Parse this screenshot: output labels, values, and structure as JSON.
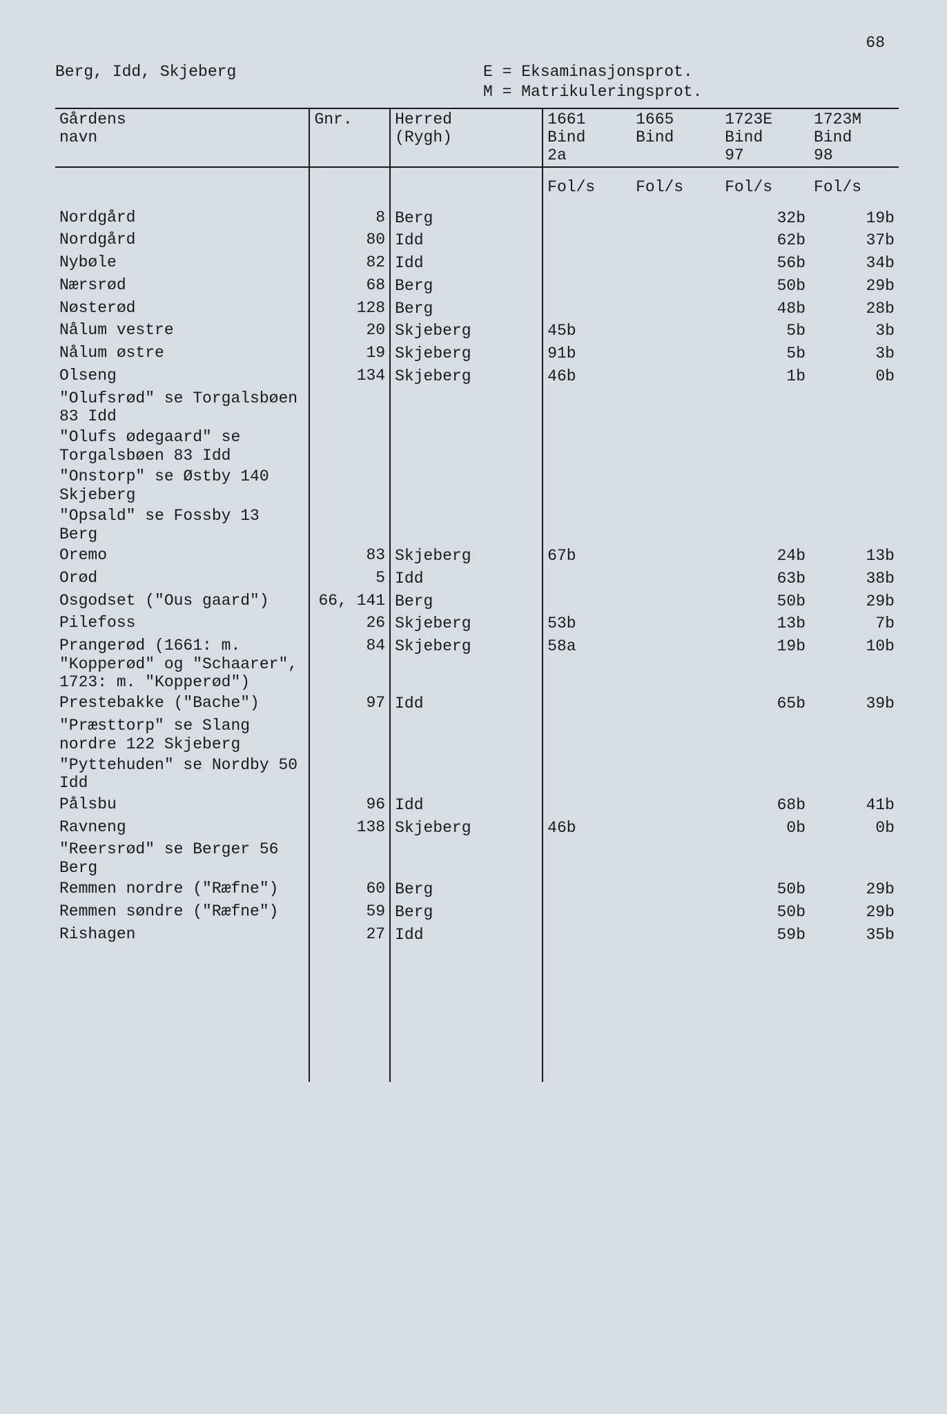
{
  "page_number": "68",
  "header_left": "Berg, Idd, Skjeberg",
  "header_right_line1": "E = Eksaminasjonsprot.",
  "header_right_line2": "M = Matrikuleringsprot.",
  "columns": {
    "name_l1": "Gårdens",
    "name_l2": "navn",
    "gnr": "Gnr.",
    "herred_l1": "Herred",
    "herred_l2": "(Rygh)",
    "y1_l1": "1661",
    "y1_l2": "Bind",
    "y1_l3": "2a",
    "y2_l1": "1665",
    "y2_l2": "Bind",
    "y2_l3": "",
    "y3_l1": "1723E",
    "y3_l2": "Bind",
    "y3_l3": "97",
    "y4_l1": "1723M",
    "y4_l2": "Bind",
    "y4_l3": "98",
    "fols": "Fol/s"
  },
  "rows": [
    {
      "name": "Nordgård",
      "gnr": "8",
      "herred": "Berg",
      "y1": "",
      "y2": "",
      "y3": "32b",
      "y4": "19b"
    },
    {
      "name": "Nordgård",
      "gnr": "80",
      "herred": "Idd",
      "y1": "",
      "y2": "",
      "y3": "62b",
      "y4": "37b"
    },
    {
      "name": "Nybøle",
      "gnr": "82",
      "herred": "Idd",
      "y1": "",
      "y2": "",
      "y3": "56b",
      "y4": "34b"
    },
    {
      "name": "Nærsrød",
      "gnr": "68",
      "herred": "Berg",
      "y1": "",
      "y2": "",
      "y3": "50b",
      "y4": "29b"
    },
    {
      "name": "Nøsterød",
      "gnr": "128",
      "herred": "Berg",
      "y1": "",
      "y2": "",
      "y3": "48b",
      "y4": "28b"
    },
    {
      "name": "Nålum vestre",
      "gnr": "20",
      "herred": "Skjeberg",
      "y1": "45b",
      "y2": "",
      "y3": "5b",
      "y4": "3b"
    },
    {
      "name": "Nålum østre",
      "gnr": "19",
      "herred": "Skjeberg",
      "y1": "91b",
      "y2": "",
      "y3": "5b",
      "y4": "3b"
    },
    {
      "name": "Olseng",
      "gnr": "134",
      "herred": "Skjeberg",
      "y1": "46b",
      "y2": "",
      "y3": "1b",
      "y4": "0b"
    },
    {
      "note": "\"Olufsrød\" se Torgalsbøen 83 Idd"
    },
    {
      "note": "\"Olufs ødegaard\" se Torgalsbøen 83 Idd"
    },
    {
      "note": "\"Onstorp\" se Østby 140 Skjeberg"
    },
    {
      "note": "\"Opsald\" se Fossby 13 Berg"
    },
    {
      "name": "Oremo",
      "gnr": "83",
      "herred": "Skjeberg",
      "y1": "67b",
      "y2": "",
      "y3": "24b",
      "y4": "13b"
    },
    {
      "name": "Orød",
      "gnr": "5",
      "herred": "Idd",
      "y1": "",
      "y2": "",
      "y3": "63b",
      "y4": "38b"
    },
    {
      "name": "Osgodset (\"Ous gaard\")",
      "gnr": "66, 141",
      "herred": "Berg",
      "y1": "",
      "y2": "",
      "y3": "50b",
      "y4": "29b"
    },
    {
      "name": "Pilefoss",
      "gnr": "26",
      "herred": "Skjeberg",
      "y1": "53b",
      "y2": "",
      "y3": "13b",
      "y4": "7b"
    },
    {
      "name": "Prangerød (1661: m. \"Kopperød\" og \"Schaarer\", 1723: m. \"Kopperød\")",
      "gnr": "84",
      "herred": "Skjeberg",
      "y1": "58a",
      "y2": "",
      "y3": "19b",
      "y4": "10b"
    },
    {
      "name": "Prestebakke (\"Bache\")",
      "gnr": "97",
      "herred": "Idd",
      "y1": "",
      "y2": "",
      "y3": "65b",
      "y4": "39b"
    },
    {
      "note": "\"Præsttorp\" se Slang nordre 122 Skjeberg"
    },
    {
      "note": "\"Pyttehuden\" se Nordby 50 Idd"
    },
    {
      "name": "Pålsbu",
      "gnr": "96",
      "herred": "Idd",
      "y1": "",
      "y2": "",
      "y3": "68b",
      "y4": "41b"
    },
    {
      "name": "Ravneng",
      "gnr": "138",
      "herred": "Skjeberg",
      "y1": "46b",
      "y2": "",
      "y3": "0b",
      "y4": "0b"
    },
    {
      "note": "\"Reersrød\" se Berger 56 Berg"
    },
    {
      "name": "Remmen nordre (\"Ræfne\")",
      "gnr": "60",
      "herred": "Berg",
      "y1": "",
      "y2": "",
      "y3": "50b",
      "y4": "29b"
    },
    {
      "name": "Remmen søndre (\"Ræfne\")",
      "gnr": "59",
      "herred": "Berg",
      "y1": "",
      "y2": "",
      "y3": "50b",
      "y4": "29b"
    },
    {
      "name": "Rishagen",
      "gnr": "27",
      "herred": "Idd",
      "y1": "",
      "y2": "",
      "y3": "59b",
      "y4": "35b"
    }
  ],
  "style": {
    "page_bg": "#d8dde3",
    "text_color": "#1a1a1a",
    "border_color": "#1a1a1a",
    "font_family": "Courier New",
    "font_size_pt": 17
  }
}
